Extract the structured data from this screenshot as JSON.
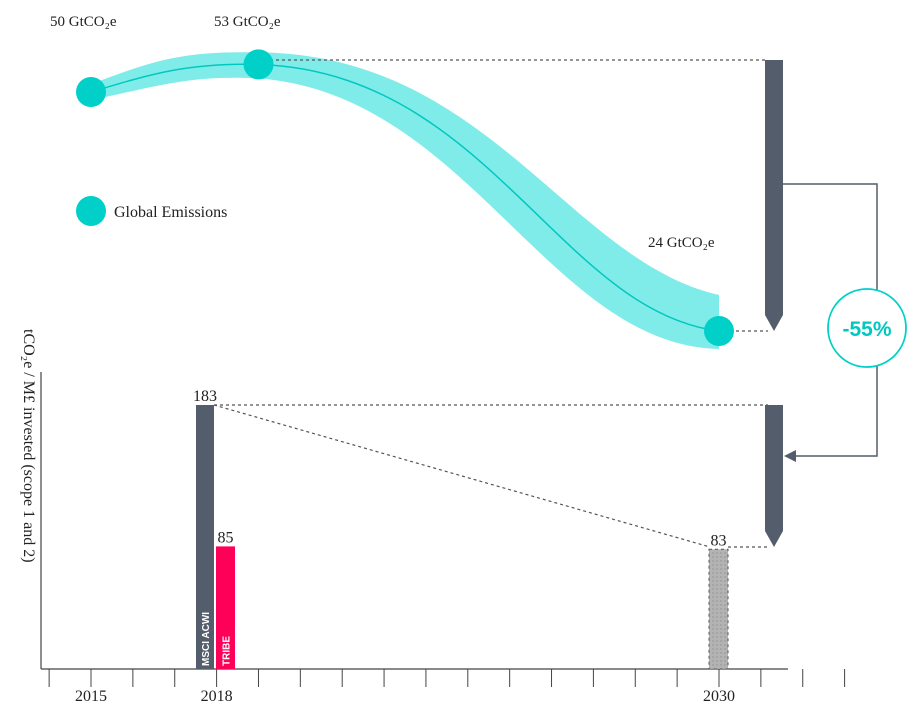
{
  "chart_data": [
    {
      "type": "area",
      "series": [
        {
          "name": "Global Emissions",
          "points": [
            {
              "year": 2015,
              "value": 50,
              "label": "50 GtCO₂e"
            },
            {
              "year": 2019,
              "value": 53,
              "label": "53 GtCO₂e"
            },
            {
              "year": 2030,
              "value": 24,
              "label": "24 GtCO₂e"
            }
          ]
        }
      ],
      "reduction": {
        "label": "-55%",
        "value": -55
      },
      "color": "#00d0c8",
      "band_color": "#80ecea"
    },
    {
      "type": "bar",
      "ylabel": "tCO₂e / M£ invested (scope 1 and 2)",
      "x_ticks": [
        2015,
        2018,
        2030
      ],
      "xlim": [
        2014,
        2033
      ],
      "bars": [
        {
          "name": "MSCI ACWI",
          "year": 2018,
          "value": 183,
          "label": "183",
          "color": "#545d6b"
        },
        {
          "name": "TRIBE",
          "year": 2018,
          "value": 85,
          "label": "85",
          "color": "#ff0058"
        },
        {
          "name": "",
          "year": 2030,
          "value": 83,
          "label": "83",
          "color": "#b3b3b3"
        }
      ]
    }
  ]
}
